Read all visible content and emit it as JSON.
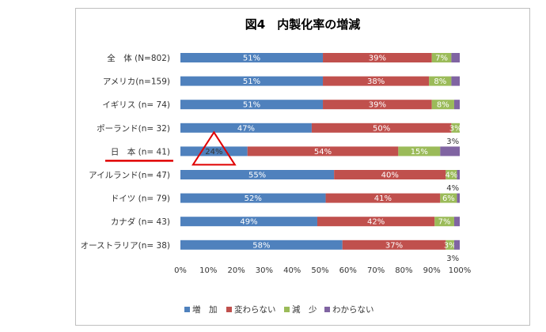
{
  "chart_data": {
    "type": "bar",
    "orientation": "horizontal",
    "stacked": true,
    "percent": true,
    "title": "図4　内製化率の増減",
    "categories": [
      "全　体 (N=802)",
      "アメリカ(n=159)",
      "イギリス (n= 74)",
      "ポーランド(n= 32)",
      "日　本 (n= 41)",
      "アイルランド(n= 47)",
      "ドイツ (n= 79)",
      "カナダ (n= 43)",
      "オーストラリア(n= 38)"
    ],
    "series": [
      {
        "name": "増　加",
        "color": "#4f81bd",
        "values": [
          51,
          51,
          51,
          47,
          24,
          55,
          52,
          49,
          58
        ],
        "labels": [
          "51%",
          "51%",
          "51%",
          "47%",
          "24%",
          "55%",
          "52%",
          "49%",
          "58%"
        ]
      },
      {
        "name": "変わらない",
        "color": "#c0504d",
        "values": [
          39,
          38,
          39,
          50,
          54,
          40,
          41,
          42,
          37
        ],
        "labels": [
          "39%",
          "38%",
          "39%",
          "50%",
          "54%",
          "40%",
          "41%",
          "42%",
          "37%"
        ]
      },
      {
        "name": "減　少",
        "color": "#9bbb59",
        "values": [
          7,
          8,
          8,
          3,
          15,
          4,
          6,
          7,
          3
        ],
        "labels": [
          "7%",
          "8%",
          "8%",
          "3%",
          "15%",
          "4%",
          "6%",
          "7%",
          "3%"
        ]
      },
      {
        "name": "わからない",
        "color": "#8064a2",
        "values": [
          3,
          3,
          2,
          0,
          7,
          1,
          1,
          2,
          2
        ],
        "labels": [
          "",
          "",
          "",
          "",
          "",
          "",
          "",
          "",
          ""
        ]
      }
    ],
    "outside_labels": [
      "",
      "",
      "",
      "3%",
      "",
      "4%",
      "",
      "",
      "3%"
    ],
    "xlim": [
      0,
      100
    ],
    "x_ticks": [
      "0%",
      "10%",
      "20%",
      "30%",
      "40%",
      "50%",
      "60%",
      "70%",
      "80%",
      "90%",
      "100%"
    ],
    "legend_position": "bottom",
    "highlight": {
      "category_index": 4,
      "underline_color": "#e00000",
      "triangle_color": "#e00000"
    }
  }
}
